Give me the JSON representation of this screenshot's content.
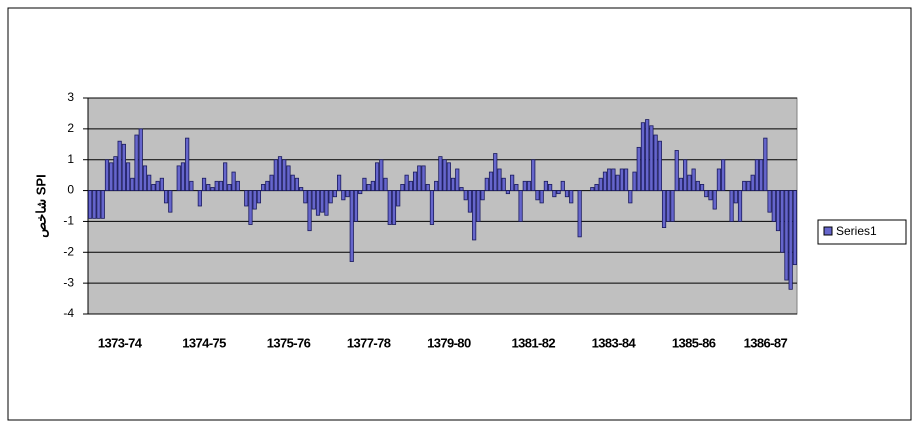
{
  "chart_data": {
    "type": "bar",
    "y_label": "شاخص SPI",
    "categories": [
      null,
      null,
      null,
      null,
      null,
      null,
      null,
      "1373-74",
      null,
      null,
      null,
      null,
      null,
      null,
      null,
      null,
      null,
      null,
      null,
      null,
      null,
      null,
      null,
      null,
      null,
      null,
      null,
      "1374-75",
      null,
      null,
      null,
      null,
      null,
      null,
      null,
      null,
      null,
      null,
      null,
      null,
      null,
      null,
      null,
      null,
      null,
      null,
      null,
      "1375-76",
      null,
      null,
      null,
      null,
      null,
      null,
      null,
      null,
      null,
      null,
      null,
      null,
      null,
      null,
      null,
      null,
      null,
      null,
      "1377-78",
      null,
      null,
      null,
      null,
      null,
      null,
      null,
      null,
      null,
      null,
      null,
      null,
      null,
      null,
      null,
      null,
      null,
      null,
      "1379-80",
      null,
      null,
      null,
      null,
      null,
      null,
      null,
      null,
      null,
      null,
      null,
      null,
      null,
      null,
      null,
      null,
      null,
      null,
      null,
      "1381-82",
      null,
      null,
      null,
      null,
      null,
      null,
      null,
      null,
      null,
      null,
      null,
      null,
      null,
      null,
      null,
      null,
      null,
      null,
      "1383-84",
      null,
      null,
      null,
      null,
      null,
      null,
      null,
      null,
      null,
      null,
      null,
      null,
      null,
      null,
      null,
      null,
      null,
      null,
      "1385-86",
      null,
      null,
      null,
      null,
      null,
      null,
      null,
      null,
      null,
      null,
      null,
      null,
      null,
      null,
      null,
      null,
      "1386-87",
      null,
      null,
      null,
      null,
      null,
      null,
      null
    ],
    "series": [
      {
        "name": "Series1",
        "color": "#6666cc",
        "values": [
          -0.9,
          -0.9,
          -0.9,
          -0.9,
          1.0,
          0.9,
          1.1,
          1.6,
          1.5,
          0.9,
          0.4,
          1.8,
          2.0,
          0.8,
          0.5,
          0.2,
          0.3,
          0.4,
          -0.4,
          -0.7,
          0.0,
          0.8,
          0.9,
          1.7,
          0.3,
          0.0,
          -0.5,
          0.4,
          0.2,
          0.1,
          0.3,
          0.3,
          0.9,
          0.2,
          0.6,
          0.3,
          0.0,
          -0.5,
          -1.1,
          -0.6,
          -0.4,
          0.2,
          0.3,
          0.5,
          1.0,
          1.1,
          1.0,
          0.8,
          0.5,
          0.4,
          0.1,
          -0.4,
          -1.3,
          -0.6,
          -0.8,
          -0.7,
          -0.8,
          -0.4,
          -0.2,
          0.5,
          -0.3,
          -0.2,
          -2.3,
          -1.0,
          -0.1,
          0.4,
          0.2,
          0.3,
          0.9,
          1.0,
          0.4,
          -1.1,
          -1.1,
          -0.5,
          0.2,
          0.5,
          0.3,
          0.6,
          0.8,
          0.8,
          0.2,
          -1.1,
          0.3,
          1.1,
          1.0,
          0.9,
          0.4,
          0.7,
          0.1,
          -0.3,
          -0.7,
          -1.6,
          -1.0,
          -0.3,
          0.4,
          0.6,
          1.2,
          0.7,
          0.4,
          -0.1,
          0.5,
          0.2,
          -1.0,
          0.3,
          0.3,
          1.0,
          -0.3,
          -0.4,
          0.3,
          0.2,
          -0.2,
          -0.1,
          0.3,
          -0.2,
          -0.4,
          0.0,
          -1.5,
          0.0,
          0.0,
          0.1,
          0.2,
          0.4,
          0.6,
          0.7,
          0.7,
          0.5,
          0.7,
          0.7,
          -0.4,
          0.6,
          1.4,
          2.2,
          2.3,
          2.1,
          1.8,
          1.6,
          -1.2,
          -1.0,
          -1.0,
          1.3,
          0.4,
          1.0,
          0.5,
          0.7,
          0.3,
          0.2,
          -0.2,
          -0.3,
          -0.6,
          0.7,
          1.0,
          0.0,
          -1.0,
          -0.4,
          -1.0,
          0.3,
          0.3,
          0.5,
          1.0,
          1.0,
          1.7,
          -0.7,
          -1.0,
          -1.3,
          -2.0,
          -2.9,
          -3.2,
          -2.4
        ]
      }
    ],
    "ylim": [
      -4,
      3
    ],
    "yticks": [
      -4,
      -3,
      -2,
      -1,
      0,
      1,
      2,
      3
    ],
    "grid": true,
    "legend": "right"
  }
}
